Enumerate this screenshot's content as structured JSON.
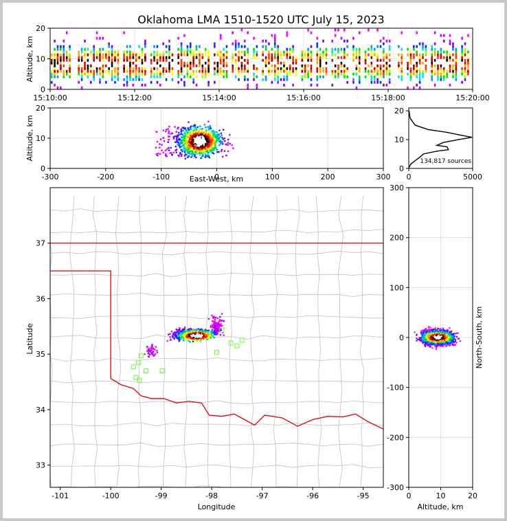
{
  "title": "Oklahoma LMA 1510-1520 UTC July 15, 2023",
  "colors": {
    "state_border": "#e00000",
    "county": "#c0c0c0",
    "stations": "#66ff33"
  },
  "chart_data": [
    {
      "id": "time_height",
      "type": "heatmap",
      "ylabel": "Altitude, km",
      "xlim": [
        "15:10:00",
        "15:20:00"
      ],
      "ylim": [
        0,
        20
      ],
      "xticks": [
        "15:10:00",
        "15:12:00",
        "15:14:00",
        "15:16:00",
        "15:18:00",
        "15:20:00"
      ],
      "yticks": [
        0,
        10,
        20
      ]
    },
    {
      "id": "ew_height",
      "type": "heatmap",
      "xlabel": "East-West, km",
      "ylabel": "Altitude, km",
      "xlim": [
        -300,
        300
      ],
      "ylim": [
        0,
        20
      ],
      "xticks": [
        -300,
        -200,
        -100,
        0,
        100,
        200,
        300
      ],
      "yticks": [
        0,
        10,
        20
      ]
    },
    {
      "id": "height_histogram",
      "type": "line",
      "xlim": [
        0,
        5000
      ],
      "ylim": [
        0,
        21
      ],
      "xticks": [
        0,
        5000
      ],
      "yticks": [
        0,
        10,
        20
      ],
      "annotation": "134,817 sources",
      "series": [
        {
          "x": [
            20,
            150,
            600,
            900,
            1150,
            2200,
            3100,
            3000,
            2200,
            2700,
            3900,
            4950,
            4100,
            3000,
            1500,
            500,
            100,
            20
          ],
          "y": [
            0.3,
            1.5,
            3.0,
            4.0,
            5.0,
            6.0,
            6.5,
            7.5,
            8.0,
            9.0,
            10.0,
            10.8,
            11.5,
            12.5,
            13.5,
            15.0,
            17.5,
            20.0
          ]
        }
      ]
    },
    {
      "id": "plan_view",
      "type": "heatmap",
      "xlabel": "Longitude",
      "ylabel": "Latitude",
      "xlim": [
        -101.2,
        -94.6
      ],
      "ylim": [
        32.6,
        38.0
      ],
      "xticks": [
        -101,
        -100,
        -99,
        -98,
        -97,
        -96,
        -95
      ],
      "yticks": [
        33,
        34,
        35,
        36,
        37
      ],
      "station_lonlat": [
        [
          -99.4,
          34.97
        ],
        [
          -99.45,
          34.85
        ],
        [
          -99.55,
          34.77
        ],
        [
          -99.3,
          34.7
        ],
        [
          -98.98,
          34.7
        ],
        [
          -99.5,
          34.58
        ],
        [
          -99.43,
          34.53
        ],
        [
          -97.8,
          35.43
        ],
        [
          -97.62,
          35.2
        ],
        [
          -97.5,
          35.15
        ],
        [
          -97.4,
          35.25
        ],
        [
          -97.9,
          35.03
        ]
      ]
    },
    {
      "id": "ns_height",
      "type": "heatmap",
      "xlabel": "Altitude, km",
      "ylabel": "North-South, km",
      "xlim": [
        0,
        20
      ],
      "ylim": [
        -300,
        300
      ],
      "xticks": [
        0,
        10,
        20
      ],
      "yticks": [
        -300,
        -200,
        -100,
        0,
        100,
        200,
        300
      ]
    }
  ]
}
